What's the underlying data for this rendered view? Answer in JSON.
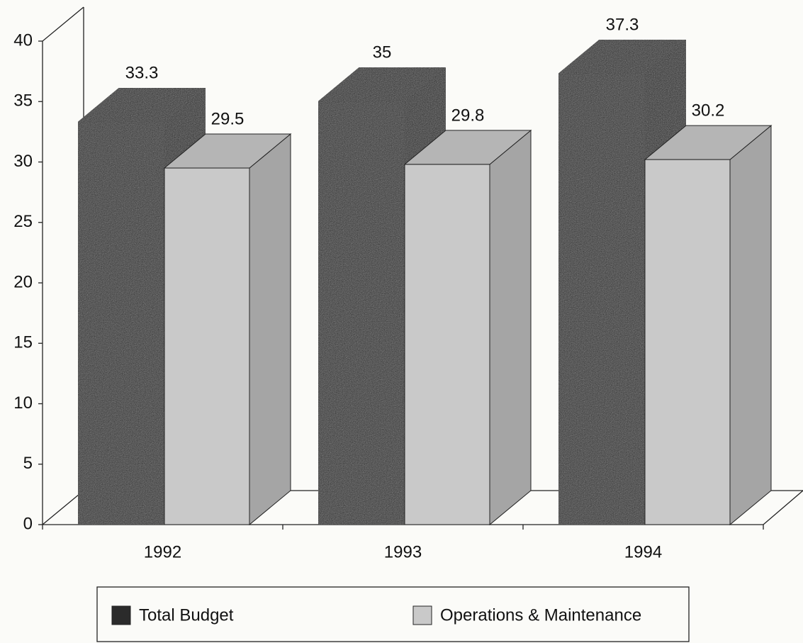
{
  "chart_data": {
    "type": "bar3d",
    "categories": [
      "1992",
      "1993",
      "1994"
    ],
    "series": [
      {
        "name": "Total Budget",
        "color": "#2b2b2b",
        "values": [
          33.3,
          35,
          37.3
        ]
      },
      {
        "name": "Operations & Maintenance",
        "color": "#c9c9c9",
        "values": [
          29.5,
          29.8,
          30.2
        ]
      }
    ],
    "ylim": [
      0,
      40
    ],
    "yticks": [
      0,
      5,
      10,
      15,
      20,
      25,
      30,
      35,
      40
    ],
    "legend": "bottom"
  }
}
